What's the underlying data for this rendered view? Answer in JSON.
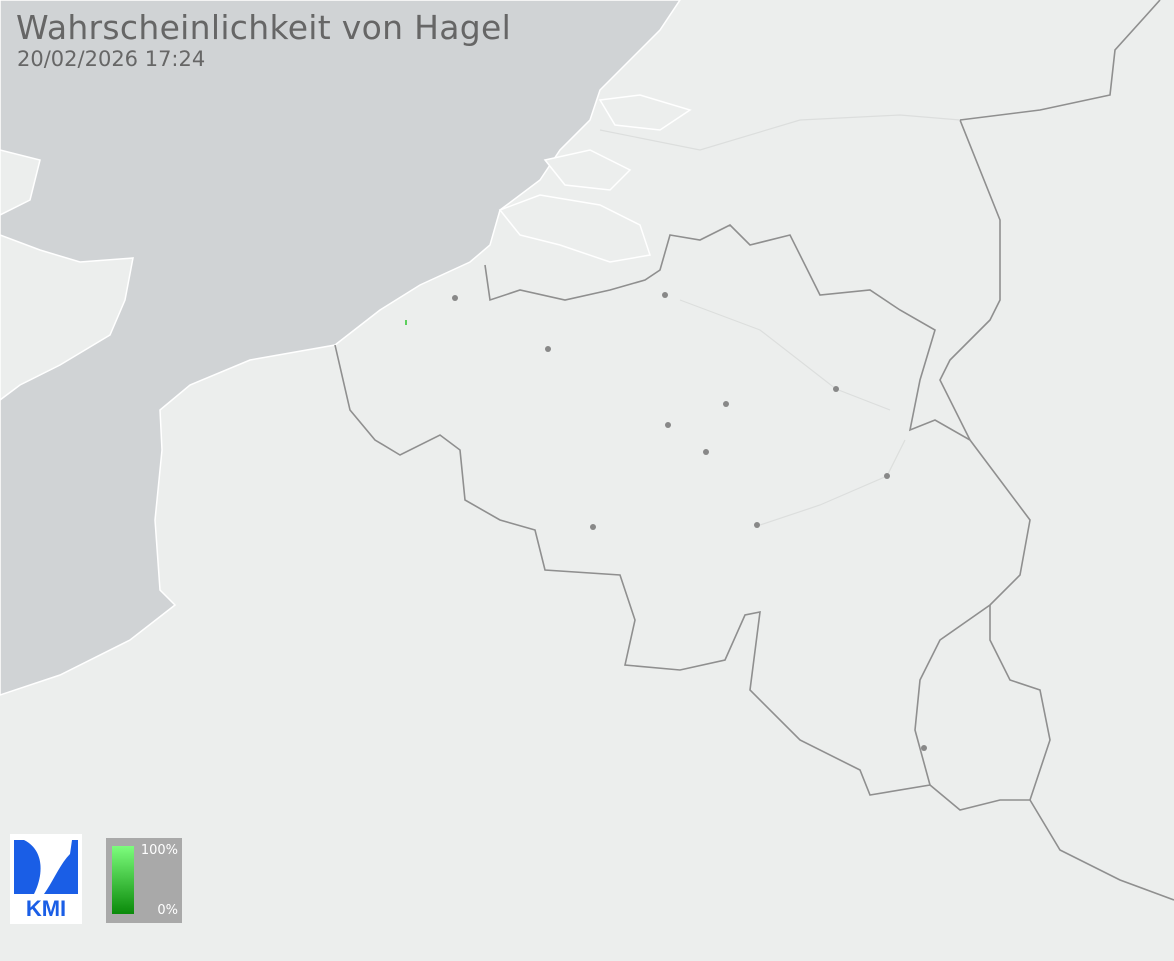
{
  "header": {
    "title": "Wahrscheinlichkeit von Hagel",
    "timestamp": "20/02/2026 17:24"
  },
  "logo": {
    "text": "KMI"
  },
  "legend": {
    "max_label": "100%",
    "min_label": "0%",
    "color_high": "#7dfd7d",
    "color_low": "#0a8a0a"
  },
  "colors": {
    "sea": "#d0d3d5",
    "land": "#eceeed",
    "border": "#8f8f8f",
    "city": "#888888"
  }
}
